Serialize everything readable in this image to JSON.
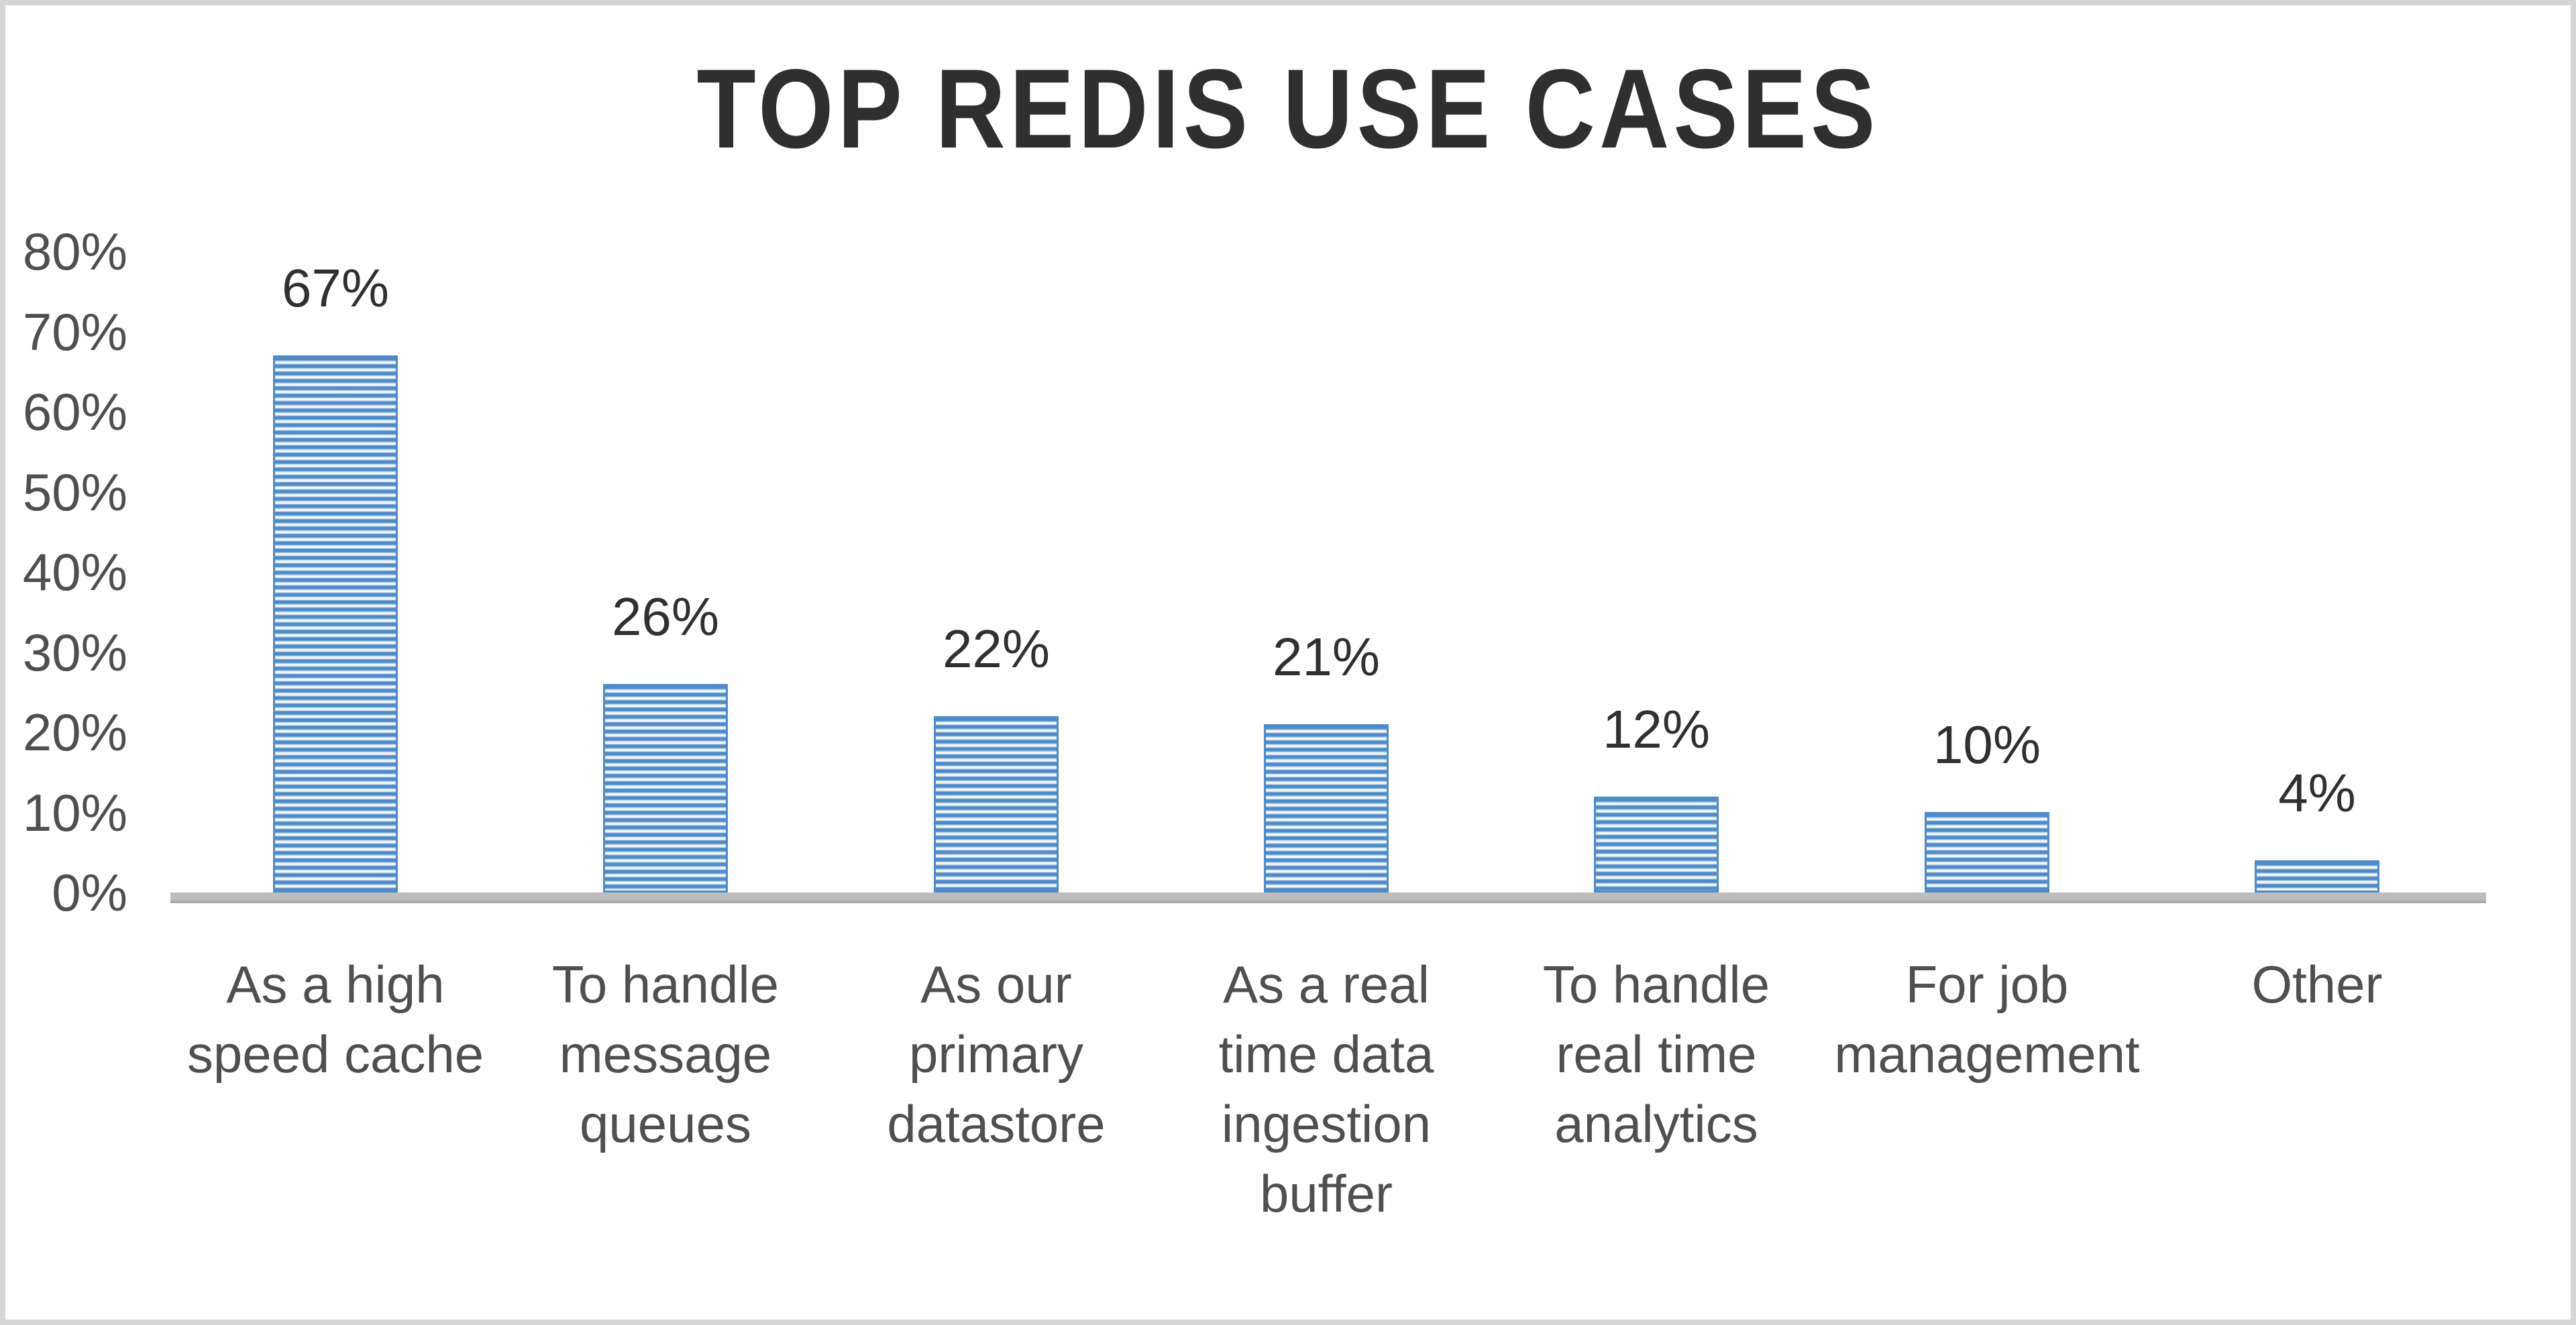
{
  "chart_data": {
    "type": "bar",
    "title": "TOP REDIS USE CASES",
    "categories": [
      "As a high speed cache",
      "To handle message queues",
      "As our primary datastore",
      "As a real time data ingestion buffer",
      "To handle real time analytics",
      "For job management",
      "Other"
    ],
    "category_lines": [
      "As a high\nspeed cache",
      "To handle\nmessage\nqueues",
      "As our\nprimary\ndatastore",
      "As a real\ntime data\ningestion\nbuffer",
      "To handle\nreal time\nanalytics",
      "For job\nmanagement",
      "Other"
    ],
    "values": [
      67,
      26,
      22,
      21,
      12,
      10,
      4
    ],
    "data_labels": [
      "67%",
      "26%",
      "22%",
      "21%",
      "12%",
      "10%",
      "4%"
    ],
    "xlabel": "",
    "ylabel": "",
    "yaxis": {
      "min": 0,
      "max": 80,
      "step": 10,
      "tick_labels": [
        "0%",
        "10%",
        "20%",
        "30%",
        "40%",
        "50%",
        "60%",
        "70%",
        "80%"
      ]
    },
    "grid": false,
    "legend": false,
    "colors": {
      "bar_stripe": "#4e8bc8",
      "bar_light": "#eef4fb",
      "axis_line": "#b5b5b5",
      "title_text": "#2f2f2f",
      "axis_text": "#4f4f4f",
      "data_label_text": "#303030",
      "frame_border": "#d6d6d6",
      "background": "#ffffff"
    }
  }
}
